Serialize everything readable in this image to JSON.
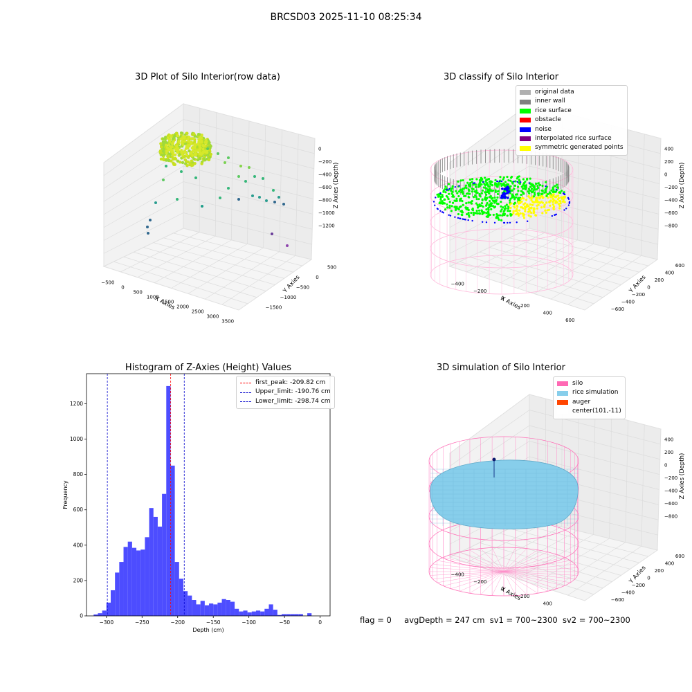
{
  "suptitle": "BRCSD03 2025-11-10 08:25:34",
  "footer": {
    "flag": "flag = 0",
    "avg_depth": "avgDepth = 247 cm",
    "sv1": "sv1 = 700~2300",
    "sv2": "sv2 = 700~2300"
  },
  "chart_data": [
    {
      "type": "scatter",
      "subtype": "3d",
      "title": "3D Plot of Silo Interior(row data)",
      "xlabel": "X Axies",
      "ylabel": "Y Axies",
      "zlabel": "Z Axies (Depth)",
      "xticks": [
        "−500",
        "0",
        "500",
        "1000",
        "1500",
        "2000",
        "2500",
        "3000",
        "3500"
      ],
      "yticks": [
        "500",
        "0",
        "−500",
        "−1000",
        "−1500"
      ],
      "zticks": [
        "0",
        "−200",
        "−400",
        "−600",
        "−800",
        "−1000",
        "−1200"
      ],
      "colors": {
        "dense_cloud": "#b5de2b",
        "mid": "#35b779",
        "deep": "#31688e",
        "outlier": "#8e44ad"
      }
    },
    {
      "type": "scatter",
      "subtype": "3d",
      "title": "3D classify of Silo Interior",
      "xlabel": "X Axies",
      "ylabel": "Y Axies",
      "zlabel": "Z Axies (Depth)",
      "xticks": [
        "−400",
        "−200",
        "0",
        "200",
        "400",
        "600"
      ],
      "yticks": [
        "600",
        "400",
        "200",
        "0",
        "−200",
        "−400",
        "−600"
      ],
      "zticks": [
        "400",
        "200",
        "0",
        "−200",
        "−400",
        "−600",
        "−800"
      ],
      "legend": [
        {
          "label": "original data",
          "color": "#b0b0b0"
        },
        {
          "label": "inner wall",
          "color": "#808080"
        },
        {
          "label": "rice surface",
          "color": "#00ff00"
        },
        {
          "label": "obstacle",
          "color": "#ff0000"
        },
        {
          "label": "noise",
          "color": "#0000ff"
        },
        {
          "label": "interpolated rice surface",
          "color": "#800080"
        },
        {
          "label": "symmetric generated points",
          "color": "#ffff00"
        }
      ],
      "colors": {
        "cylinder": "#ffb6d9"
      }
    },
    {
      "type": "bar",
      "subtype": "histogram",
      "title": "Histogram of Z-Axies (Height) Values",
      "xlabel": "Depth (cm)",
      "ylabel": "Frequency",
      "xlim": [
        -328,
        14
      ],
      "ylim": [
        0,
        1370
      ],
      "xticks": [
        -300,
        -250,
        -200,
        -150,
        -100,
        -50,
        0
      ],
      "xtick_labels": [
        "−300",
        "−250",
        "−200",
        "−150",
        "−100",
        "−50",
        "0"
      ],
      "yticks": [
        0,
        200,
        400,
        600,
        800,
        1000,
        1200
      ],
      "bar_color": "#4d4dff",
      "bins_start": -318,
      "bin_width": 6,
      "values": [
        8,
        15,
        30,
        75,
        145,
        245,
        305,
        390,
        420,
        385,
        370,
        375,
        445,
        610,
        560,
        505,
        690,
        1300,
        850,
        305,
        210,
        140,
        115,
        90,
        65,
        85,
        60,
        70,
        65,
        75,
        95,
        90,
        80,
        40,
        25,
        30,
        20,
        25,
        30,
        25,
        40,
        65,
        35,
        5,
        10,
        10,
        10,
        10,
        10,
        0,
        15
      ],
      "vlines": [
        {
          "label": "first_peak: -209.82 cm",
          "x": -209.82,
          "color": "#ff0000"
        },
        {
          "label": "Upper_limit: -190.76 cm",
          "x": -190.76,
          "color": "#0000cc"
        },
        {
          "label": "Lower_limit: -298.74 cm",
          "x": -298.74,
          "color": "#0000cc"
        }
      ]
    },
    {
      "type": "scatter",
      "subtype": "3d-surface",
      "title": "3D simulation of Silo Interior",
      "xlabel": "X Axies",
      "ylabel": "Y Axies",
      "zlabel": "Z Axies (Depth)",
      "xticks": [
        "−400",
        "−200",
        "0",
        "200",
        "400",
        "600"
      ],
      "yticks": [
        "600",
        "400",
        "200",
        "0",
        "−200",
        "−400",
        "−600"
      ],
      "zticks": [
        "400",
        "200",
        "0",
        "−200",
        "−400",
        "−600",
        "−800"
      ],
      "legend": [
        {
          "label": "silo",
          "color": "#ff69b4"
        },
        {
          "label": "rice simulation",
          "color": "#87ceeb"
        },
        {
          "label": "auger",
          "color": "#ff4500"
        },
        {
          "label": "center(101,-11)",
          "color": "#ffffff"
        }
      ]
    }
  ]
}
